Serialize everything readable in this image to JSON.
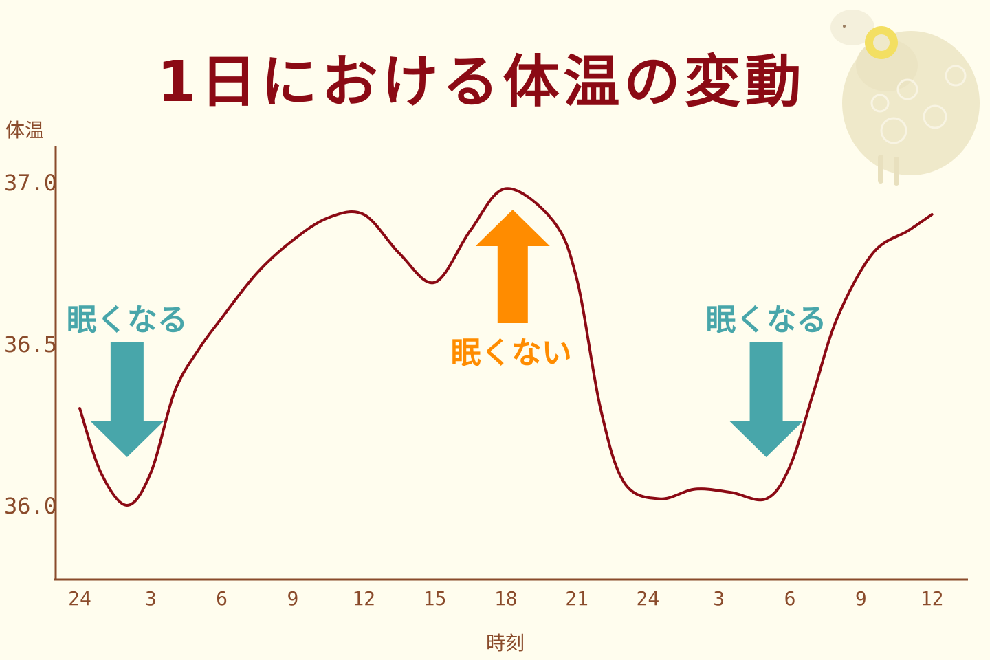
{
  "chart_data": {
    "type": "line",
    "title": "1日における体温の変動",
    "xlabel": "時刻",
    "ylabel": "体温",
    "x_ticks": [
      "24",
      "3",
      "6",
      "9",
      "12",
      "15",
      "18",
      "21",
      "24",
      "3",
      "6",
      "9",
      "12"
    ],
    "y_ticks": [
      "37.0",
      "36.5",
      "36.0"
    ],
    "ylim": [
      35.78,
      37.14
    ],
    "grid": false,
    "series": [
      {
        "color": "#8B0A14",
        "points": [
          {
            "x": 0,
            "y": 36.3
          },
          {
            "x": 0.9,
            "y": 36.1
          },
          {
            "x": 2,
            "y": 36.0
          },
          {
            "x": 3,
            "y": 36.1
          },
          {
            "x": 4,
            "y": 36.35
          },
          {
            "x": 5,
            "y": 36.48
          },
          {
            "x": 6,
            "y": 36.58
          },
          {
            "x": 7.5,
            "y": 36.72
          },
          {
            "x": 9,
            "y": 36.82
          },
          {
            "x": 10.5,
            "y": 36.89
          },
          {
            "x": 12,
            "y": 36.9
          },
          {
            "x": 13.5,
            "y": 36.78
          },
          {
            "x": 15,
            "y": 36.69
          },
          {
            "x": 16.5,
            "y": 36.85
          },
          {
            "x": 18,
            "y": 36.98
          },
          {
            "x": 20,
            "y": 36.88
          },
          {
            "x": 21,
            "y": 36.7
          },
          {
            "x": 22,
            "y": 36.3
          },
          {
            "x": 23,
            "y": 36.07
          },
          {
            "x": 24.5,
            "y": 36.02
          },
          {
            "x": 26,
            "y": 36.05
          },
          {
            "x": 27.5,
            "y": 36.04
          },
          {
            "x": 29,
            "y": 36.02
          },
          {
            "x": 30,
            "y": 36.12
          },
          {
            "x": 31,
            "y": 36.35
          },
          {
            "x": 32,
            "y": 36.58
          },
          {
            "x": 33.5,
            "y": 36.78
          },
          {
            "x": 35,
            "y": 36.85
          },
          {
            "x": 36,
            "y": 36.9
          }
        ]
      }
    ],
    "annotations": [
      {
        "text": "眠くなる",
        "direction": "down",
        "x": 2,
        "color": "#48A6AA"
      },
      {
        "text": "眠くない",
        "direction": "up",
        "x": 18,
        "color": "#FF8C00"
      },
      {
        "text": "眠くなる",
        "direction": "down",
        "x": 29,
        "color": "#48A6AA"
      }
    ]
  },
  "colors": {
    "axis": "#8A4B2B",
    "line": "#8B0A14",
    "background": "#FFFDEE"
  },
  "decoration": {
    "icon": "sheep-icon"
  }
}
